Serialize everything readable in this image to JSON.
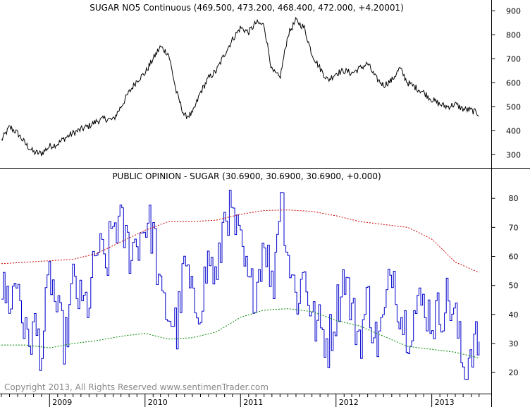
{
  "chart_data": [
    {
      "type": "line",
      "title": "SUGAR NO5 Continuous (469.500, 473.200, 468.400, 472.000, +4.20001)",
      "xlabel": "",
      "ylabel": "",
      "ylim": [
        245,
        945
      ],
      "yticks": [
        900,
        800,
        700,
        600,
        500,
        400,
        300
      ],
      "grid": false,
      "series": [
        {
          "name": "",
          "color": "#000000",
          "x": [
            "2008-07-01",
            "2008-08-01",
            "2008-09-01",
            "2008-10-01",
            "2008-11-01",
            "2008-12-01",
            "2009-01-01",
            "2009-02-01",
            "2009-03-01",
            "2009-04-01",
            "2009-05-01",
            "2009-06-01",
            "2009-07-01",
            "2009-08-01",
            "2009-09-01",
            "2009-10-01",
            "2009-11-01",
            "2009-12-01",
            "2010-01-01",
            "2010-02-01",
            "2010-03-01",
            "2010-04-01",
            "2010-05-01",
            "2010-06-01",
            "2010-07-01",
            "2010-08-01",
            "2010-09-01",
            "2010-10-01",
            "2010-11-01",
            "2010-12-01",
            "2011-01-01",
            "2011-02-01",
            "2011-03-01",
            "2011-04-01",
            "2011-05-01",
            "2011-06-01",
            "2011-07-01",
            "2011-08-01",
            "2011-09-01",
            "2011-10-01",
            "2011-11-01",
            "2011-12-01",
            "2012-01-01",
            "2012-02-01",
            "2012-03-01",
            "2012-04-01",
            "2012-05-01",
            "2012-06-01",
            "2012-07-01",
            "2012-08-01",
            "2012-09-01",
            "2012-10-01",
            "2012-11-01",
            "2012-12-01",
            "2013-01-01",
            "2013-02-01",
            "2013-03-01",
            "2013-04-01",
            "2013-05-01",
            "2013-06-01",
            "2013-07-01"
          ],
          "values": [
            360,
            415,
            390,
            345,
            310,
            305,
            335,
            345,
            370,
            390,
            405,
            420,
            440,
            450,
            445,
            500,
            560,
            610,
            640,
            700,
            750,
            720,
            560,
            460,
            470,
            560,
            620,
            650,
            720,
            780,
            830,
            810,
            850,
            840,
            650,
            620,
            800,
            860,
            830,
            720,
            660,
            610,
            640,
            650,
            640,
            660,
            680,
            620,
            590,
            610,
            660,
            600,
            580,
            560,
            530,
            510,
            500,
            510,
            490,
            485,
            470
          ]
        }
      ]
    },
    {
      "type": "line",
      "title": "PUBLIC OPINION - SUGAR (30.6900, 30.6900, 30.6900, +0.000)",
      "xlabel": "",
      "ylabel": "",
      "ylim": [
        13,
        90
      ],
      "yticks": [
        80,
        70,
        60,
        50,
        40,
        30,
        20
      ],
      "xticks": [
        "2009",
        "2010",
        "2011",
        "2012",
        "2013"
      ],
      "grid": false,
      "series": [
        {
          "name": "",
          "color": "#0000cc",
          "x": [
            "2008-07-01",
            "2008-08-01",
            "2008-09-01",
            "2008-10-01",
            "2008-11-01",
            "2008-12-01",
            "2009-01-01",
            "2009-02-01",
            "2009-03-01",
            "2009-04-01",
            "2009-05-01",
            "2009-06-01",
            "2009-07-01",
            "2009-08-01",
            "2009-09-01",
            "2009-10-01",
            "2009-11-01",
            "2009-12-01",
            "2010-01-01",
            "2010-02-01",
            "2010-03-01",
            "2010-04-01",
            "2010-05-01",
            "2010-06-01",
            "2010-07-01",
            "2010-08-01",
            "2010-09-01",
            "2010-10-01",
            "2010-11-01",
            "2010-12-01",
            "2011-01-01",
            "2011-02-01",
            "2011-03-01",
            "2011-04-01",
            "2011-05-01",
            "2011-06-01",
            "2011-07-01",
            "2011-08-01",
            "2011-09-01",
            "2011-10-01",
            "2011-11-01",
            "2011-12-01",
            "2012-01-01",
            "2012-02-01",
            "2012-03-01",
            "2012-04-01",
            "2012-05-01",
            "2012-06-01",
            "2012-07-01",
            "2012-08-01",
            "2012-09-01",
            "2012-10-01",
            "2012-11-01",
            "2012-12-01",
            "2013-01-01",
            "2013-02-01",
            "2013-03-01",
            "2013-04-01",
            "2013-05-01",
            "2013-06-01",
            "2013-07-01"
          ],
          "values": [
            48,
            45,
            52,
            30,
            35,
            28,
            55,
            38,
            30,
            52,
            42,
            45,
            64,
            55,
            72,
            70,
            62,
            65,
            72,
            68,
            44,
            40,
            35,
            58,
            42,
            45,
            60,
            50,
            78,
            72,
            62,
            48,
            50,
            68,
            47,
            85,
            60,
            45,
            55,
            38,
            35,
            30,
            42,
            55,
            40,
            32,
            46,
            30,
            38,
            58,
            40,
            35,
            42,
            44,
            38,
            41,
            46,
            38,
            20,
            30,
            30.69
          ]
        },
        {
          "name": "",
          "color": "#cc0000",
          "x": [
            "2008-07-01",
            "2008-10-01",
            "2009-01-01",
            "2009-04-01",
            "2009-07-01",
            "2009-10-01",
            "2010-01-01",
            "2010-04-01",
            "2010-07-01",
            "2010-10-01",
            "2011-01-01",
            "2011-04-01",
            "2011-07-01",
            "2011-10-01",
            "2012-01-01",
            "2012-04-01",
            "2012-07-01",
            "2012-10-01",
            "2013-01-01",
            "2013-04-01",
            "2013-07-01"
          ],
          "values": [
            57.5,
            58,
            58.5,
            59,
            61,
            65,
            69,
            72,
            72,
            72.5,
            74.5,
            75.8,
            76,
            75.5,
            74,
            72,
            71,
            70,
            66,
            58,
            54.5
          ]
        },
        {
          "name": "",
          "color": "#008800",
          "x": [
            "2008-07-01",
            "2008-10-01",
            "2009-01-01",
            "2009-04-01",
            "2009-07-01",
            "2009-10-01",
            "2010-01-01",
            "2010-04-01",
            "2010-07-01",
            "2010-10-01",
            "2011-01-01",
            "2011-04-01",
            "2011-07-01",
            "2011-10-01",
            "2012-01-01",
            "2012-04-01",
            "2012-07-01",
            "2012-10-01",
            "2013-01-01",
            "2013-04-01",
            "2013-07-01"
          ],
          "values": [
            29.5,
            29.5,
            28.5,
            30,
            31,
            32.5,
            33.5,
            31.5,
            32,
            34,
            39,
            41.5,
            42,
            41,
            38,
            36,
            32.5,
            29,
            28,
            27,
            25
          ]
        }
      ]
    }
  ],
  "x_axis": {
    "start": "2008-07-01",
    "end": "2013-07-15",
    "year_labels": [
      "2009",
      "2010",
      "2011",
      "2012",
      "2013"
    ]
  },
  "footer": {
    "copyright": "Copyright 2013, All Rights Reserved  www.sentimenTrader.com"
  }
}
